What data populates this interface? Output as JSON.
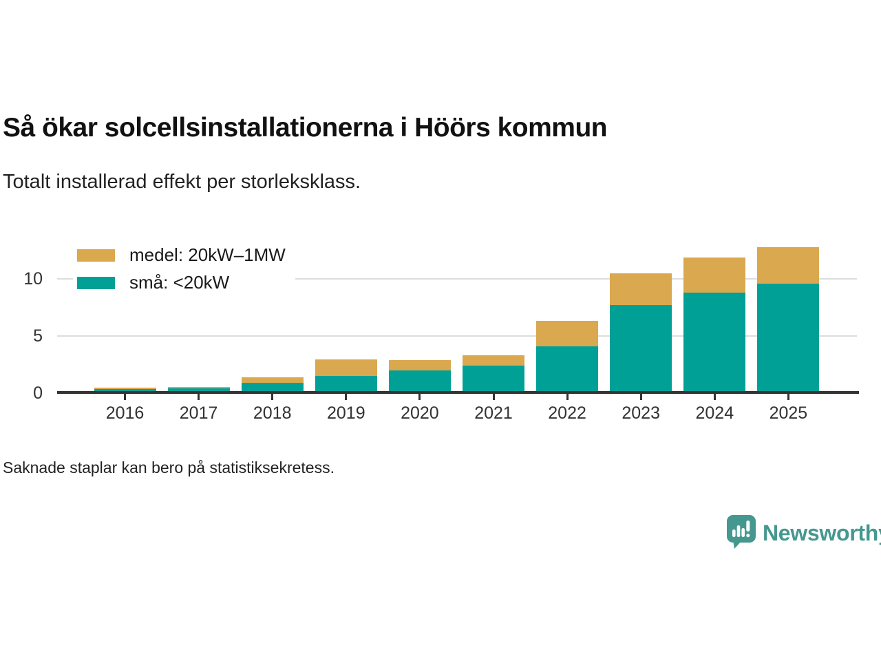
{
  "header": {
    "title": "Så ökar solcellsinstallationerna i Höörs kommun",
    "subtitle": "Totalt installerad effekt per storleksklass."
  },
  "footnote": "Saknade staplar kan bero på statistiksekretess.",
  "branding": {
    "wordmark": "Newsworthy",
    "logo_icon": "bar-chart-speech-bubble-icon",
    "brand_color": "#45988F"
  },
  "colors": {
    "sma_series": "#00A096",
    "medel_series": "#D9A84F",
    "axis": "#333333",
    "grid": "#DDDDDD",
    "background": "#FFFFFF"
  },
  "chart_data": {
    "type": "bar",
    "stacked": true,
    "title": "Så ökar solcellsinstallationerna i Höörs kommun",
    "subtitle": "Totalt installerad effekt per storleksklass.",
    "categories": [
      "2016",
      "2017",
      "2018",
      "2019",
      "2020",
      "2021",
      "2022",
      "2023",
      "2024",
      "2025"
    ],
    "series": [
      {
        "name": "medel: 20kW–1MW",
        "color": "#D9A84F",
        "stack_position": "top",
        "values": [
          0.15,
          0.15,
          0.5,
          1.45,
          0.9,
          0.9,
          2.2,
          2.75,
          3.1,
          3.2
        ]
      },
      {
        "name": "små: <20kW",
        "color": "#00A096",
        "stack_position": "bottom",
        "values": [
          0.35,
          0.4,
          0.9,
          1.5,
          2.0,
          2.4,
          4.1,
          7.7,
          8.8,
          9.55
        ]
      }
    ],
    "xlabel": "",
    "ylabel": "",
    "ylim": [
      0,
      13.5
    ],
    "yticks": [
      0,
      5,
      10
    ],
    "grid": "horizontal-at-5-and-10",
    "legend_position": "top-left-inside"
  }
}
